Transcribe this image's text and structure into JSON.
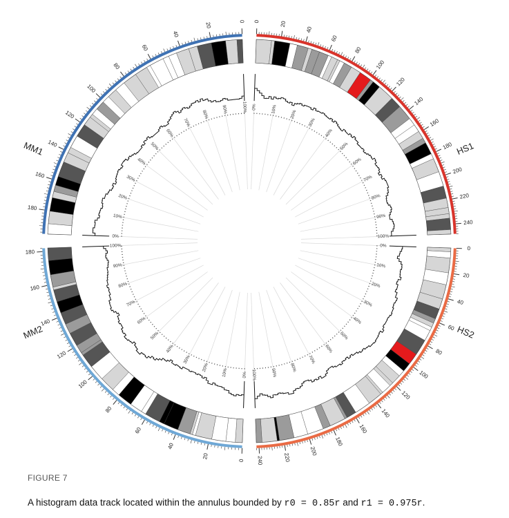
{
  "figure": {
    "label": "FIGURE 7",
    "caption": {
      "text_before": "A histogram data track located within the annulus bounded by ",
      "r0_expr": "r0 = 0.85r",
      "conjunction": " and ",
      "r1_expr": "r1 = 0.975r",
      "end": "."
    }
  },
  "colors": {
    "MM1": "#3f72b3",
    "MM2": "#6fa8d6",
    "HS1": "#d9342b",
    "HS2": "#ea6b45",
    "band_black": "#000000",
    "band_dark": "#555555",
    "band_grey": "#9b9b9b",
    "band_light": "#d6d6d6",
    "band_highlight": "#e41a1c"
  },
  "chart_data": {
    "type": "circular-genome-plot",
    "ideograms": [
      {
        "name": "HS1",
        "length": 248,
        "ticks": [
          0,
          20,
          40,
          60,
          80,
          100,
          120,
          140,
          160,
          180,
          200,
          220,
          240
        ]
      },
      {
        "name": "HS2",
        "length": 242,
        "ticks": [
          0,
          20,
          40,
          60,
          80,
          100,
          120,
          140,
          160,
          180,
          200,
          220,
          240
        ]
      },
      {
        "name": "MM2",
        "length": 182,
        "ticks": [
          0,
          20,
          40,
          60,
          80,
          100,
          120,
          140,
          160,
          180
        ]
      },
      {
        "name": "MM1",
        "length": 195,
        "ticks": [
          0,
          20,
          40,
          60,
          80,
          100,
          120,
          140,
          160,
          180
        ]
      }
    ],
    "histogram_track": {
      "r0": "0.85r",
      "r1": "0.975r",
      "percent_ticks": [
        "0%",
        "10%",
        "20%",
        "30%",
        "40%",
        "50%",
        "60%",
        "70%",
        "80%",
        "90%",
        "100%"
      ]
    }
  }
}
